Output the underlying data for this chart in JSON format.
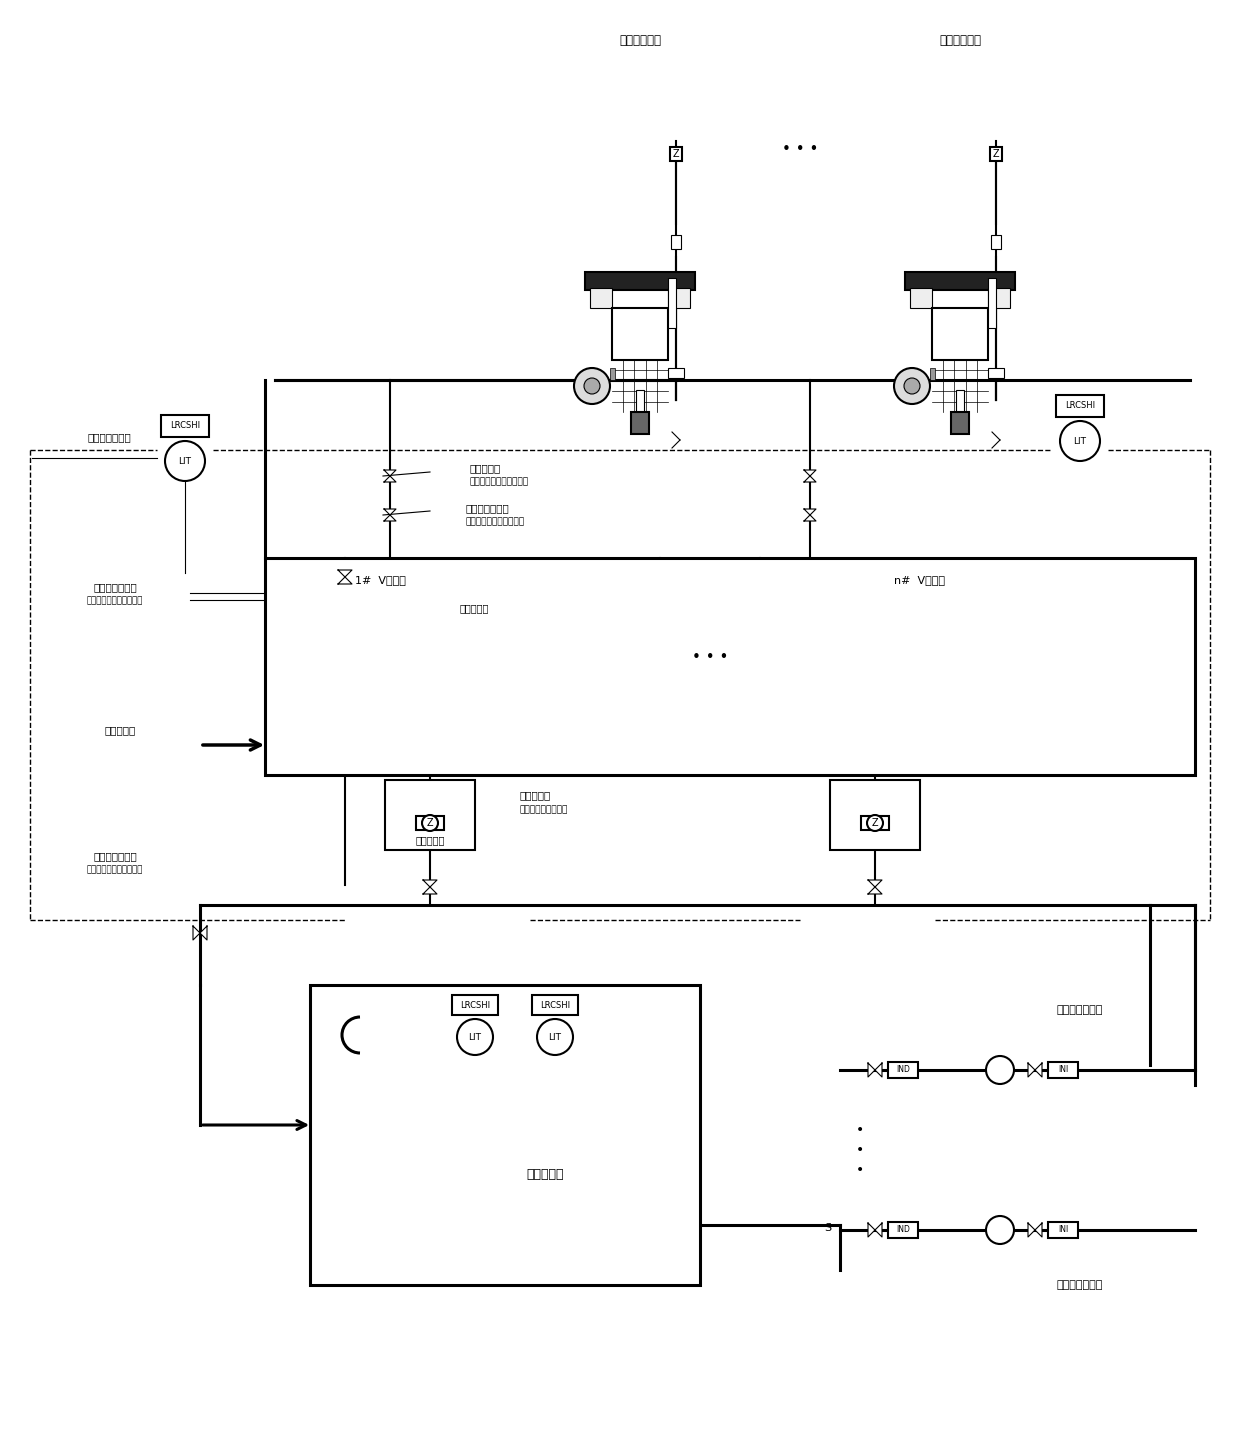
{
  "bg_color": "#ffffff",
  "lc": "#000000",
  "labels": {
    "blower1": "反洗罗茨风机",
    "blower2": "反洗罗茨风机",
    "filter1": "1#  V型滤池",
    "filter2": "n#  V型滤池",
    "backwash_drain_ch": "反洗排水渠",
    "water_channel": "进水管渠渠",
    "exhaust_valve": "排气开关阀",
    "exhaust_valve_fb": "（带全开全关阀位反馈）",
    "backwash_air_valve": "反洗进气开关阀",
    "backwash_air_valve_fb": "（带全开全关阀位反馈）",
    "backwash_drain_valve": "反洗排水开关阀",
    "backwash_drain_valve_fb": "（带全开全关阀位反馈）",
    "filter_level": "滤池在线液位计",
    "backwash_inlet_valve": "反洗进水开关阀",
    "backwash_inlet_valve_fb": "（常全开全关阀位反馈）",
    "product_valve": "产水控制阀",
    "product_valve_fb": "（常阀位连续反馈）",
    "outlet_weir": "出水稳流篱",
    "filter_pool": "滤池产水池",
    "backwash_pump_top": "滤池反冲洗水泵",
    "backwash_pump_bot": "滤池反冲洗水泵"
  }
}
